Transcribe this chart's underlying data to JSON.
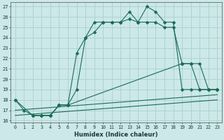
{
  "xlabel": "Humidex (Indice chaleur)",
  "bg_color": "#cce8e8",
  "grid_color": "#aacfcf",
  "line_color": "#1a6b5a",
  "xlim": [
    -0.5,
    23.5
  ],
  "ylim": [
    15.8,
    27.4
  ],
  "yticks": [
    16,
    17,
    18,
    19,
    20,
    21,
    22,
    23,
    24,
    25,
    26,
    27
  ],
  "xticks": [
    0,
    1,
    2,
    3,
    4,
    5,
    6,
    7,
    8,
    9,
    10,
    11,
    12,
    13,
    14,
    15,
    16,
    17,
    18,
    19,
    20,
    21,
    22,
    23
  ],
  "lines": [
    {
      "x": [
        0,
        1,
        2,
        3,
        4,
        5,
        6,
        7,
        8,
        9,
        10,
        11,
        12,
        13,
        14,
        15,
        16,
        17,
        18,
        19,
        20,
        21,
        22,
        23
      ],
      "y": [
        18,
        17,
        16.5,
        16.5,
        16.5,
        17.5,
        17.5,
        19,
        24,
        25.5,
        25.5,
        25.5,
        25.5,
        26.5,
        25.5,
        27,
        26.5,
        25.5,
        25.5,
        19,
        19,
        19,
        19,
        19
      ],
      "marker": "D",
      "ms": 2.5
    },
    {
      "x": [
        2,
        3,
        4,
        5,
        6,
        7,
        8,
        9,
        10,
        11,
        12,
        13,
        14,
        15,
        16,
        17,
        18,
        19,
        20,
        21,
        22,
        23
      ],
      "y": [
        16.5,
        16.5,
        16.5,
        17.5,
        17.5,
        22.5,
        24,
        24.5,
        25.5,
        25.5,
        25.5,
        25.8,
        25.5,
        25.5,
        25.5,
        25,
        25,
        21.5,
        21.5,
        19,
        19,
        19
      ],
      "marker": "D",
      "ms": 2.5
    },
    {
      "x": [
        0,
        2,
        3,
        4,
        5,
        6,
        19,
        20,
        21,
        22,
        23
      ],
      "y": [
        18,
        16.5,
        16.5,
        16.5,
        17.5,
        17.5,
        21.5,
        21.5,
        21.5,
        19,
        19
      ],
      "marker": "D",
      "ms": 2.5
    },
    {
      "x": [
        0,
        23
      ],
      "y": [
        17,
        18.5
      ],
      "marker": null,
      "ms": 0
    },
    {
      "x": [
        0,
        23
      ],
      "y": [
        16.5,
        18.0
      ],
      "marker": null,
      "ms": 0
    }
  ]
}
